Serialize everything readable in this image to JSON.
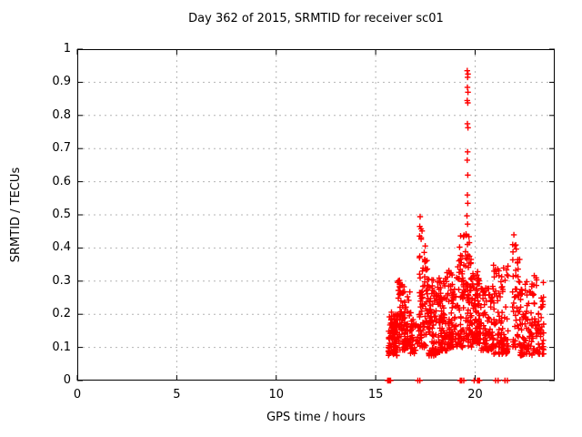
{
  "chart_data": {
    "type": "scatter",
    "title": "Day 362 of 2015, SRMTID for receiver sc01",
    "xlabel": "GPS time / hours",
    "ylabel": "SRMTID / TECUs",
    "xlim": [
      0,
      24
    ],
    "ylim": [
      0,
      1
    ],
    "xticks": [
      0,
      5,
      10,
      15,
      20
    ],
    "yticks": [
      0,
      0.1,
      0.2,
      0.3,
      0.4,
      0.5,
      0.6,
      0.7,
      0.8,
      0.9,
      1
    ],
    "grid": true,
    "legend": "none",
    "marker": "plus",
    "marker_color": "#ff0000",
    "grid_color": "#b4b4b4",
    "border_color": "#000000",
    "data_extent": {
      "x_start": 15.6,
      "x_end": 23.45,
      "y_min": 0,
      "y_max": 0.935
    },
    "spike_points": [
      [
        19.6,
        0.935
      ],
      [
        19.64,
        0.925
      ],
      [
        19.62,
        0.915
      ],
      [
        19.61,
        0.885
      ],
      [
        19.64,
        0.87
      ],
      [
        19.6,
        0.845
      ],
      [
        19.63,
        0.838
      ],
      [
        19.61,
        0.775
      ],
      [
        19.64,
        0.763
      ],
      [
        19.62,
        0.69
      ],
      [
        19.6,
        0.665
      ],
      [
        19.63,
        0.62
      ],
      [
        19.61,
        0.56
      ],
      [
        19.63,
        0.535
      ],
      [
        19.59,
        0.497
      ],
      [
        19.62,
        0.472
      ]
    ],
    "zero_line_marks": [
      15.6,
      15.63,
      15.67,
      15.71,
      15.75,
      17.12,
      17.22,
      19.25,
      19.29,
      19.33,
      19.43,
      19.95,
      20.12,
      20.17,
      20.22,
      21.03,
      21.15,
      21.5,
      21.62
    ],
    "clusters": [
      {
        "x": [
          15.62,
          16.12
        ],
        "y": [
          0.075,
          0.21
        ],
        "n": 95,
        "skew": 1.2
      },
      {
        "x": [
          16.1,
          16.48
        ],
        "y": [
          0.09,
          0.305
        ],
        "n": 60,
        "skew": 1.6
      },
      {
        "x": [
          16.45,
          16.78
        ],
        "y": [
          0.095,
          0.27
        ],
        "n": 45,
        "skew": 1.5
      },
      {
        "x": [
          16.75,
          17.14
        ],
        "y": [
          0.08,
          0.185
        ],
        "n": 32,
        "skew": 1.2
      },
      {
        "x": [
          17.17,
          17.38
        ],
        "y": [
          0.1,
          0.5
        ],
        "n": 48,
        "skew": 1.6
      },
      {
        "x": [
          17.42,
          17.63
        ],
        "y": [
          0.1,
          0.42
        ],
        "n": 40,
        "skew": 1.5
      },
      {
        "x": [
          17.65,
          18.28
        ],
        "y": [
          0.075,
          0.31
        ],
        "n": 110,
        "skew": 1.5
      },
      {
        "x": [
          18.28,
          18.78
        ],
        "y": [
          0.09,
          0.34
        ],
        "n": 80,
        "skew": 1.6
      },
      {
        "x": [
          18.78,
          19.15
        ],
        "y": [
          0.1,
          0.35
        ],
        "n": 58,
        "skew": 1.7
      },
      {
        "x": [
          19.15,
          19.47
        ],
        "y": [
          0.1,
          0.465
        ],
        "n": 58,
        "skew": 1.6
      },
      {
        "x": [
          19.5,
          19.82
        ],
        "y": [
          0.1,
          0.45
        ],
        "n": 62,
        "skew": 1.5
      },
      {
        "x": [
          19.82,
          20.28
        ],
        "y": [
          0.11,
          0.33
        ],
        "n": 88,
        "skew": 1.4
      },
      {
        "x": [
          20.28,
          20.92
        ],
        "y": [
          0.09,
          0.285
        ],
        "n": 78,
        "skew": 1.4
      },
      {
        "x": [
          20.92,
          21.66
        ],
        "y": [
          0.08,
          0.35
        ],
        "n": 98,
        "skew": 1.6
      },
      {
        "x": [
          21.88,
          22.26
        ],
        "y": [
          0.1,
          0.44
        ],
        "n": 52,
        "skew": 1.5
      },
      {
        "x": [
          22.26,
          22.96
        ],
        "y": [
          0.075,
          0.3
        ],
        "n": 88,
        "skew": 1.5
      },
      {
        "x": [
          22.96,
          23.45
        ],
        "y": [
          0.08,
          0.32
        ],
        "n": 56,
        "skew": 1.6
      }
    ]
  }
}
